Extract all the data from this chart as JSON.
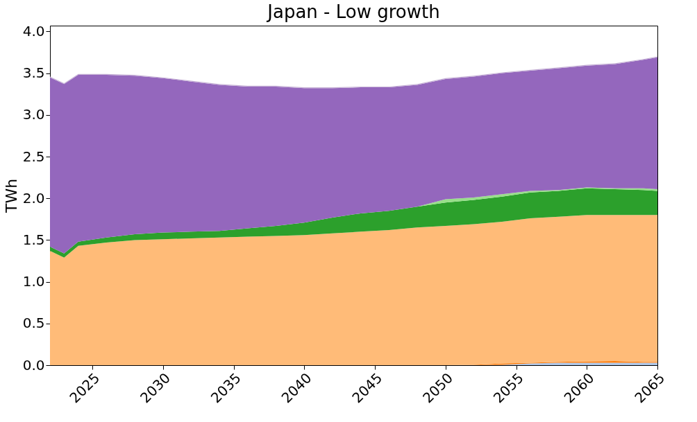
{
  "chart_data": {
    "type": "area",
    "stacked": true,
    "title": "Japan - Low growth",
    "ylabel": "TWh",
    "x": [
      2022,
      2023,
      2024,
      2026,
      2028,
      2030,
      2032,
      2034,
      2036,
      2038,
      2040,
      2042,
      2044,
      2046,
      2048,
      2050,
      2052,
      2054,
      2056,
      2058,
      2060,
      2062,
      2064,
      2065
    ],
    "xlim": [
      2022,
      2065
    ],
    "xticks": [
      2025,
      2030,
      2035,
      2040,
      2045,
      2050,
      2055,
      2060,
      2065
    ],
    "ylim": [
      0,
      4.07
    ],
    "yticks": [
      {
        "value": 0,
        "label": "0.0"
      },
      {
        "value": 0.5,
        "label": "0.5"
      },
      {
        "value": 1,
        "label": "1.0"
      },
      {
        "value": 1.5,
        "label": "1.5"
      },
      {
        "value": 2,
        "label": "2.0"
      },
      {
        "value": 2.5,
        "label": "2.5"
      },
      {
        "value": 3,
        "label": "3.0"
      },
      {
        "value": 3.5,
        "label": "3.5"
      },
      {
        "value": 4,
        "label": "4.0"
      }
    ],
    "grid": false,
    "legend": false,
    "series": [
      {
        "color": "#aec7e8",
        "values": [
          0,
          0,
          0,
          0,
          0,
          0,
          0,
          0,
          0,
          0,
          0,
          0,
          0,
          0,
          0,
          0,
          0,
          0.005,
          0.02,
          0.03,
          0.03,
          0.03,
          0.03,
          0.03
        ]
      },
      {
        "color": "#ff7f0e",
        "values": [
          0,
          0,
          0,
          0,
          0,
          0,
          0,
          0,
          0,
          0,
          0,
          0,
          0,
          0,
          0,
          0,
          0.005,
          0.015,
          0.01,
          0.01,
          0.015,
          0.02,
          0.01,
          0.01
        ]
      },
      {
        "color": "#ffbb78",
        "values": [
          1.37,
          1.29,
          1.43,
          1.47,
          1.5,
          1.51,
          1.52,
          1.53,
          1.54,
          1.55,
          1.56,
          1.58,
          1.6,
          1.62,
          1.65,
          1.67,
          1.685,
          1.7,
          1.73,
          1.74,
          1.755,
          1.75,
          1.76,
          1.76
        ]
      },
      {
        "color": "#2ca02c",
        "values": [
          0.05,
          0.05,
          0.05,
          0.06,
          0.07,
          0.08,
          0.08,
          0.08,
          0.1,
          0.12,
          0.15,
          0.19,
          0.22,
          0.23,
          0.25,
          0.28,
          0.29,
          0.3,
          0.31,
          0.31,
          0.32,
          0.31,
          0.3,
          0.29
        ]
      },
      {
        "color": "#98df8a",
        "values": [
          0,
          0,
          0,
          0,
          0,
          0,
          0,
          0,
          0,
          0,
          0,
          0,
          0,
          0,
          0,
          0.04,
          0.03,
          0.03,
          0.02,
          0.01,
          0.01,
          0.01,
          0.02,
          0.02
        ]
      },
      {
        "color": "#9467bd",
        "values": [
          2.03,
          2.03,
          2.0,
          1.95,
          1.9,
          1.85,
          1.8,
          1.75,
          1.7,
          1.67,
          1.61,
          1.55,
          1.51,
          1.48,
          1.46,
          1.44,
          1.45,
          1.45,
          1.44,
          1.46,
          1.46,
          1.49,
          1.54,
          1.58
        ]
      },
      {
        "color": "#c5b0d5",
        "values": [
          0.01,
          0.01,
          0.01,
          0.01,
          0.01,
          0.01,
          0.01,
          0.01,
          0.01,
          0.01,
          0.01,
          0.01,
          0.01,
          0.01,
          0.01,
          0.01,
          0.01,
          0.01,
          0.01,
          0.01,
          0.01,
          0.01,
          0.01,
          0.01
        ]
      }
    ]
  }
}
